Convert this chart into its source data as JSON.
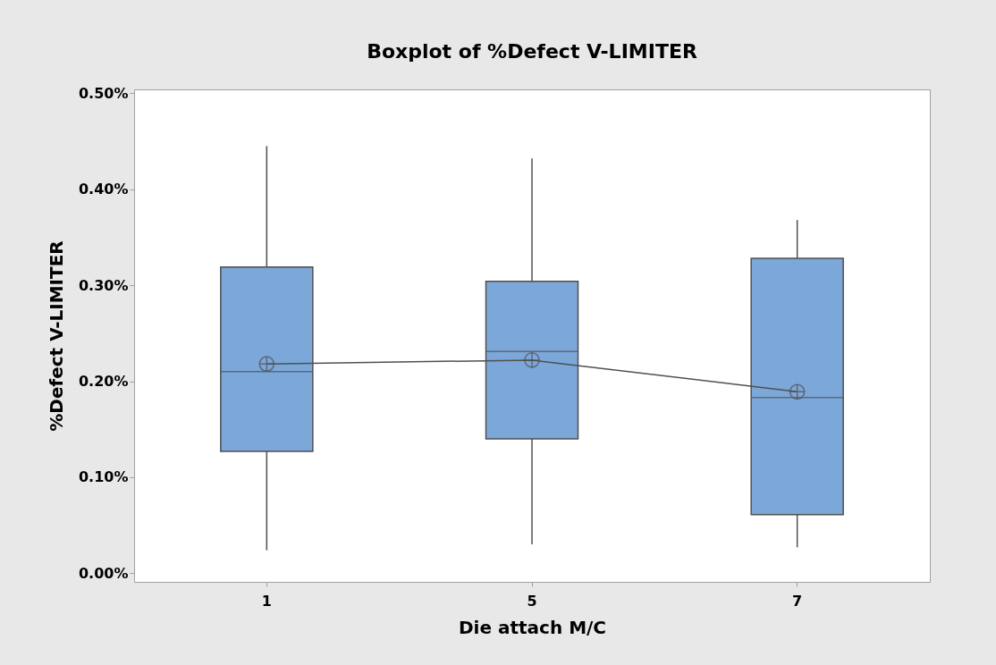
{
  "chart_data": {
    "type": "box",
    "title": "Boxplot of %Defect V-LIMITER",
    "xlabel": "Die attach M/C",
    "ylabel": "%Defect V-LIMITER",
    "categories": [
      "1",
      "5",
      "7"
    ],
    "color": "#7ba7d9",
    "boxes": [
      {
        "low": 0.024,
        "q1": 0.127,
        "median": 0.21,
        "q3": 0.319,
        "high": 0.445,
        "mean": 0.218
      },
      {
        "low": 0.03,
        "q1": 0.14,
        "median": 0.231,
        "q3": 0.304,
        "high": 0.432,
        "mean": 0.222
      },
      {
        "low": 0.027,
        "q1": 0.061,
        "median": 0.183,
        "q3": 0.328,
        "high": 0.368,
        "mean": 0.189
      }
    ],
    "series": [
      {
        "type": "line",
        "color": "#505050",
        "values": [
          0.218,
          0.222,
          0.189
        ]
      }
    ],
    "ylim": [
      -0.009,
      0.504
    ],
    "yticks": [
      {
        "value": 0,
        "label": "0.00%"
      },
      {
        "value": 0.1,
        "label": "0.10%"
      },
      {
        "value": 0.2,
        "label": "0.20%"
      },
      {
        "value": 0.3,
        "label": "0.30%"
      },
      {
        "value": 0.4,
        "label": "0.40%"
      },
      {
        "value": 0.5,
        "label": "0.50%"
      }
    ]
  }
}
